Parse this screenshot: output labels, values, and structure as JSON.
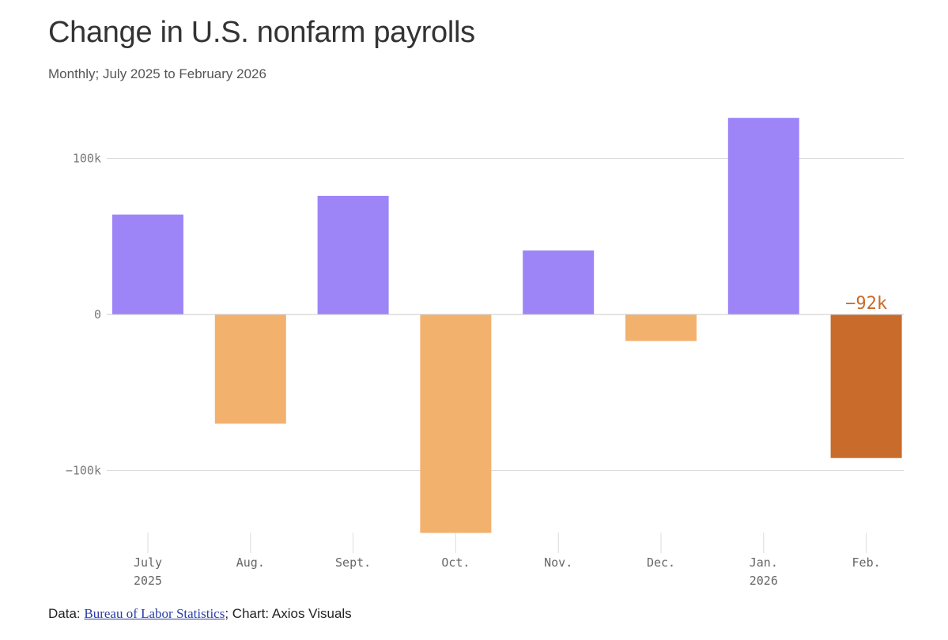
{
  "chart_data": {
    "type": "bar",
    "title": "Change in U.S. nonfarm payrolls",
    "subtitle": "Monthly; July 2025 to February 2026",
    "categories": [
      "July",
      "Aug.",
      "Sept.",
      "Oct.",
      "Nov.",
      "Dec.",
      "Jan.",
      "Feb."
    ],
    "category_sublabels": [
      "2025",
      "",
      "",
      "",
      "",
      "",
      "2026",
      ""
    ],
    "values": [
      64,
      -70,
      76,
      -140,
      41,
      -17,
      126,
      -92
    ],
    "unit": "k",
    "ylim": [
      -140,
      126
    ],
    "yticks": [
      {
        "value": 100,
        "label": "100k"
      },
      {
        "value": 0,
        "label": "0"
      },
      {
        "value": -100,
        "label": "−100k"
      }
    ],
    "annotations": [
      {
        "category": "Feb.",
        "text": "−92k"
      }
    ],
    "grid": true,
    "colors": {
      "positive": "#9d85f8",
      "negative": "#f3b16e",
      "highlight": "#c96b2a",
      "annotation": "#c96b2a",
      "grid": "#dcdcdc",
      "tick_text": "#7a7a7a"
    },
    "highlight_category": "Feb."
  },
  "footer": {
    "prefix": "Data: ",
    "source_link": "Bureau of Labor Statistics",
    "suffix": "; Chart: Axios Visuals"
  }
}
